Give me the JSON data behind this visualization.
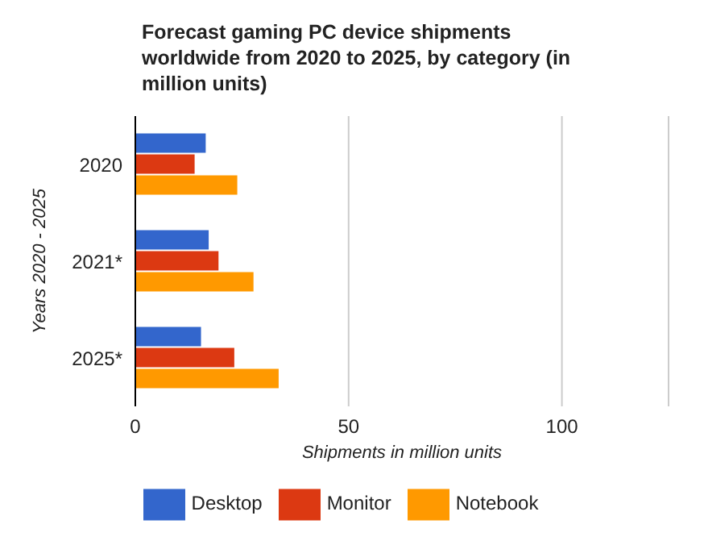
{
  "chart_data": {
    "type": "bar",
    "orientation": "horizontal",
    "title": "Forecast gaming PC device shipments worldwide from 2020 to 2025, by category (in million units)",
    "xlabel": "Shipments in million units",
    "ylabel": "Years 2020 - 2025",
    "categories": [
      "2020",
      "2021*",
      "2025*"
    ],
    "series": [
      {
        "name": "Desktop",
        "color": "#3366cc",
        "values": [
          16.5,
          17.2,
          15.4
        ]
      },
      {
        "name": "Monitor",
        "color": "#dc3912",
        "values": [
          13.9,
          19.5,
          23.2
        ]
      },
      {
        "name": "Notebook",
        "color": "#ff9900",
        "values": [
          23.9,
          27.7,
          33.6
        ]
      }
    ],
    "xlim": [
      0,
      125
    ],
    "xticks": [
      0,
      50,
      100
    ],
    "grid": "x",
    "legend": "bottom"
  }
}
